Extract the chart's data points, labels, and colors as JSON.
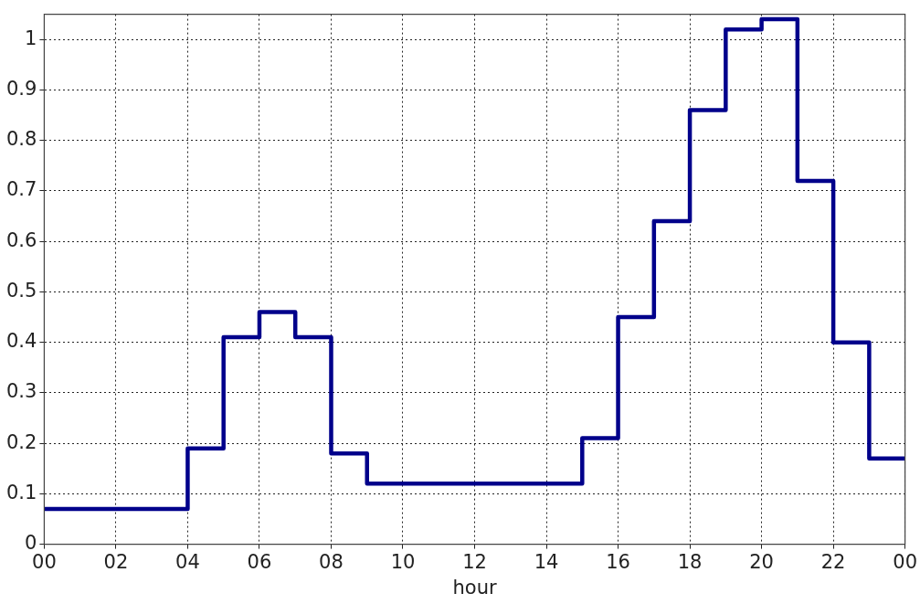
{
  "chart_data": {
    "type": "step",
    "xlabel": "hour",
    "x": [
      0,
      1,
      2,
      3,
      4,
      5,
      6,
      7,
      8,
      9,
      10,
      11,
      12,
      13,
      14,
      15,
      16,
      17,
      18,
      19,
      20,
      21,
      22,
      23,
      24
    ],
    "series": [
      {
        "color": "#00008b",
        "values": [
          0.07,
          0.07,
          0.07,
          0.07,
          0.19,
          0.41,
          0.46,
          0.41,
          0.18,
          0.12,
          0.12,
          0.12,
          0.12,
          0.12,
          0.12,
          0.21,
          0.45,
          0.64,
          0.86,
          1.02,
          1.04,
          0.72,
          0.4,
          0.17,
          0.17
        ]
      }
    ],
    "xlim": [
      0,
      24
    ],
    "xticks": [
      {
        "value": 0,
        "label": "00"
      },
      {
        "value": 2,
        "label": "02"
      },
      {
        "value": 4,
        "label": "04"
      },
      {
        "value": 6,
        "label": "06"
      },
      {
        "value": 8,
        "label": "08"
      },
      {
        "value": 10,
        "label": "10"
      },
      {
        "value": 12,
        "label": "12"
      },
      {
        "value": 14,
        "label": "14"
      },
      {
        "value": 16,
        "label": "16"
      },
      {
        "value": 18,
        "label": "18"
      },
      {
        "value": 20,
        "label": "20"
      },
      {
        "value": 22,
        "label": "22"
      },
      {
        "value": 24,
        "label": "00"
      }
    ],
    "ylim": [
      0,
      1.05
    ],
    "yticks": [
      0,
      0.1,
      0.2,
      0.3,
      0.4,
      0.5,
      0.6,
      0.7,
      0.8,
      0.9,
      1
    ],
    "grid": true,
    "line_style": "solid",
    "marker": "none",
    "legend": false
  }
}
